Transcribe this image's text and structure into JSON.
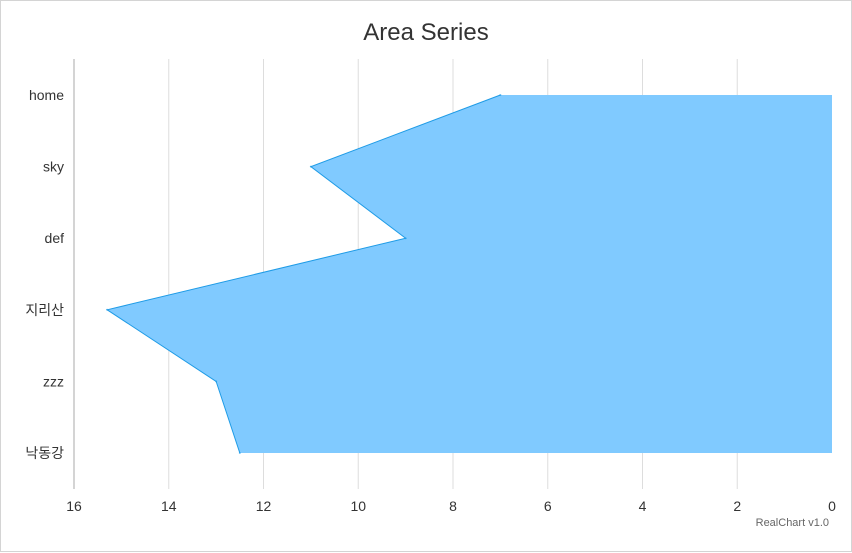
{
  "chart_data": {
    "type": "area",
    "title": "Area Series",
    "orientation": "horizontal",
    "x_axis_reversed": true,
    "categories": [
      "home",
      "sky",
      "def",
      "지리산",
      "zzz",
      "낙동강"
    ],
    "values": [
      7,
      11,
      9,
      15.3,
      13,
      12.5
    ],
    "xlim": [
      0,
      16
    ],
    "x_ticks": [
      16,
      14,
      12,
      10,
      8,
      6,
      4,
      2,
      0
    ],
    "grid": true,
    "legend": "none",
    "colors": {
      "fill": "#80caff",
      "stroke": "#1e9be6",
      "grid": "#dddddd",
      "axis": "#aaaaaa"
    }
  },
  "credit": "RealChart v1.0"
}
